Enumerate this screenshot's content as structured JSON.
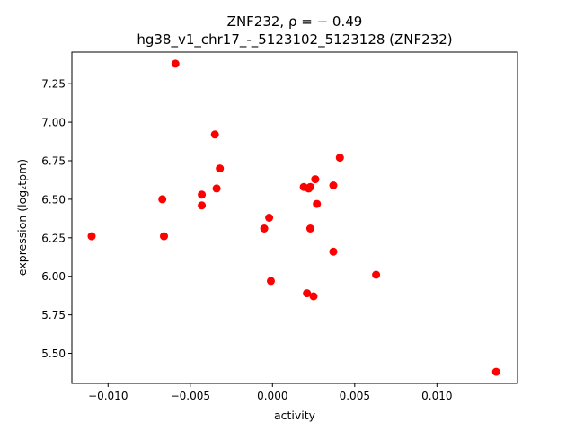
{
  "chart_data": {
    "type": "scatter",
    "title_line1": "ZNF232, ρ = − 0.49",
    "title_line2": "hg38_v1_chr17_-_5123102_5123128 (ZNF232)",
    "xlabel": "activity",
    "ylabel": "expression (log₂tpm)",
    "xlim": [
      -0.0122,
      0.0149
    ],
    "ylim": [
      5.305,
      7.455
    ],
    "x_ticks": [
      {
        "value": -0.01,
        "label": "−0.010"
      },
      {
        "value": -0.005,
        "label": "−0.005"
      },
      {
        "value": 0.0,
        "label": "0.000"
      },
      {
        "value": 0.005,
        "label": "0.005"
      },
      {
        "value": 0.01,
        "label": "0.010"
      }
    ],
    "y_ticks": [
      {
        "value": 5.5,
        "label": "5.50"
      },
      {
        "value": 5.75,
        "label": "5.75"
      },
      {
        "value": 6.0,
        "label": "6.00"
      },
      {
        "value": 6.25,
        "label": "6.25"
      },
      {
        "value": 6.5,
        "label": "6.50"
      },
      {
        "value": 6.75,
        "label": "6.75"
      },
      {
        "value": 7.0,
        "label": "7.00"
      },
      {
        "value": 7.25,
        "label": "7.25"
      }
    ],
    "point_color": "#ff0000",
    "points": [
      {
        "x": -0.011,
        "y": 6.26
      },
      {
        "x": -0.0067,
        "y": 6.5
      },
      {
        "x": -0.0066,
        "y": 6.26
      },
      {
        "x": -0.0059,
        "y": 7.38
      },
      {
        "x": -0.0043,
        "y": 6.53
      },
      {
        "x": -0.0043,
        "y": 6.46
      },
      {
        "x": -0.0035,
        "y": 6.92
      },
      {
        "x": -0.0034,
        "y": 6.57
      },
      {
        "x": -0.0032,
        "y": 6.7
      },
      {
        "x": -0.0005,
        "y": 6.31
      },
      {
        "x": -0.0002,
        "y": 6.38
      },
      {
        "x": -0.0001,
        "y": 5.97
      },
      {
        "x": 0.0019,
        "y": 6.58
      },
      {
        "x": 0.0021,
        "y": 5.89
      },
      {
        "x": 0.0022,
        "y": 6.57
      },
      {
        "x": 0.0023,
        "y": 6.58
      },
      {
        "x": 0.0023,
        "y": 6.31
      },
      {
        "x": 0.0025,
        "y": 5.87
      },
      {
        "x": 0.0026,
        "y": 6.63
      },
      {
        "x": 0.0027,
        "y": 6.47
      },
      {
        "x": 0.0037,
        "y": 6.59
      },
      {
        "x": 0.0037,
        "y": 6.16
      },
      {
        "x": 0.0041,
        "y": 6.77
      },
      {
        "x": 0.0063,
        "y": 6.01
      },
      {
        "x": 0.0136,
        "y": 5.38
      }
    ]
  }
}
